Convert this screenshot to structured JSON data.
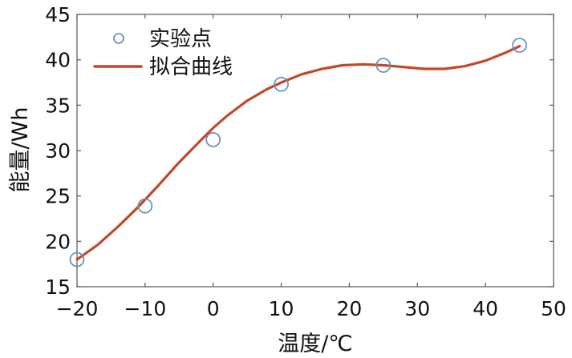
{
  "chart_data": {
    "type": "scatter",
    "xlabel": "温度/℃",
    "ylabel": "能量/Wh",
    "xlim": [
      -20,
      50
    ],
    "ylim": [
      15,
      45
    ],
    "xticks": [
      "−20",
      "−10",
      "0",
      "10",
      "20",
      "30",
      "40",
      "50"
    ],
    "yticks": [
      "15",
      "20",
      "25",
      "30",
      "35",
      "40",
      "45"
    ],
    "grid": false,
    "legend_position": "top-left",
    "series": [
      {
        "name": "实验点",
        "kind": "markers",
        "marker": "open-circle",
        "color": "#6a93b8",
        "x": [
          -20,
          -10,
          0,
          10,
          25,
          45
        ],
        "y": [
          18.0,
          23.9,
          31.2,
          37.3,
          39.4,
          41.6
        ]
      },
      {
        "name": "拟合曲线",
        "kind": "line",
        "color": "#c4472a",
        "x": [
          -20,
          -17,
          -14,
          -11,
          -8,
          -5,
          -2,
          0,
          2,
          5,
          8,
          10,
          13,
          16,
          19,
          22,
          25,
          28,
          31,
          34,
          37,
          40,
          43,
          45
        ],
        "y": [
          18.0,
          19.6,
          21.6,
          23.8,
          26.2,
          28.7,
          31.0,
          32.5,
          33.8,
          35.5,
          36.8,
          37.5,
          38.4,
          39.0,
          39.4,
          39.5,
          39.4,
          39.2,
          39.0,
          39.0,
          39.3,
          39.9,
          40.8,
          41.5
        ]
      }
    ]
  }
}
